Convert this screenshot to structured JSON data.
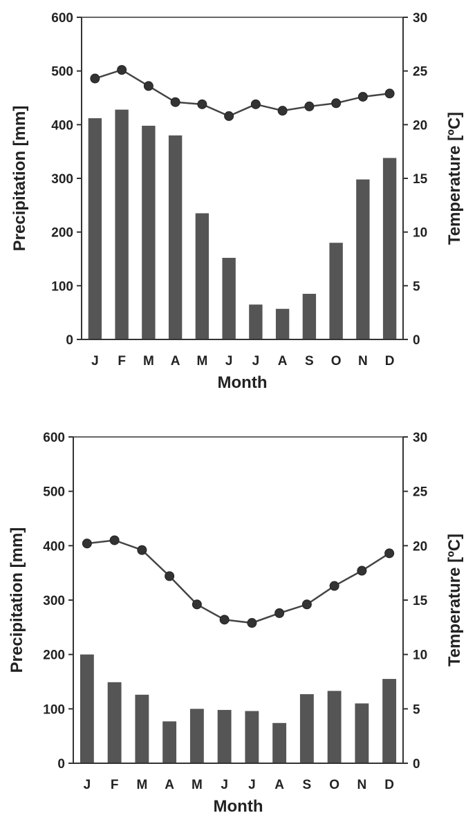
{
  "chart_data": [
    {
      "type": "bar",
      "categories": [
        "J",
        "F",
        "M",
        "A",
        "M",
        "J",
        "J",
        "A",
        "S",
        "O",
        "N",
        "D"
      ],
      "xlabel": "Month",
      "ylabel": "Precipitation [mm]",
      "y2label": "Temperature [ºC]",
      "ylim": [
        0,
        600
      ],
      "y2lim": [
        0,
        30
      ],
      "yticks": [
        0,
        100,
        200,
        300,
        400,
        500,
        600
      ],
      "y2ticks": [
        0,
        5,
        10,
        15,
        20,
        25,
        30
      ],
      "grid": false,
      "series": [
        {
          "type": "bar",
          "axis": "left",
          "values": [
            412,
            428,
            398,
            380,
            235,
            152,
            65,
            57,
            85,
            180,
            298,
            338
          ]
        },
        {
          "type": "line",
          "axis": "right",
          "values": [
            24.3,
            25.1,
            23.6,
            22.1,
            21.9,
            20.8,
            21.9,
            21.3,
            21.7,
            22.0,
            22.6,
            22.9
          ]
        }
      ],
      "colors": {
        "bars": "#555555",
        "line": "#444444",
        "marker": "#333333"
      }
    },
    {
      "type": "bar",
      "categories": [
        "J",
        "F",
        "M",
        "A",
        "M",
        "J",
        "J",
        "A",
        "S",
        "O",
        "N",
        "D"
      ],
      "xlabel": "Month",
      "ylabel": "Precipitation [mm]",
      "y2label": "Temperature [ºC]",
      "ylim": [
        0,
        600
      ],
      "y2lim": [
        0,
        30
      ],
      "yticks": [
        0,
        100,
        200,
        300,
        400,
        500,
        600
      ],
      "y2ticks": [
        0,
        5,
        10,
        15,
        20,
        25,
        30
      ],
      "grid": false,
      "series": [
        {
          "type": "bar",
          "axis": "left",
          "values": [
            200,
            149,
            126,
            77,
            100,
            98,
            96,
            74,
            127,
            133,
            110,
            155
          ]
        },
        {
          "type": "line",
          "axis": "right",
          "values": [
            20.2,
            20.5,
            19.6,
            17.2,
            14.6,
            13.2,
            12.9,
            13.8,
            14.6,
            16.3,
            17.7,
            19.3
          ]
        }
      ],
      "colors": {
        "bars": "#555555",
        "line": "#444444",
        "marker": "#333333"
      }
    }
  ]
}
